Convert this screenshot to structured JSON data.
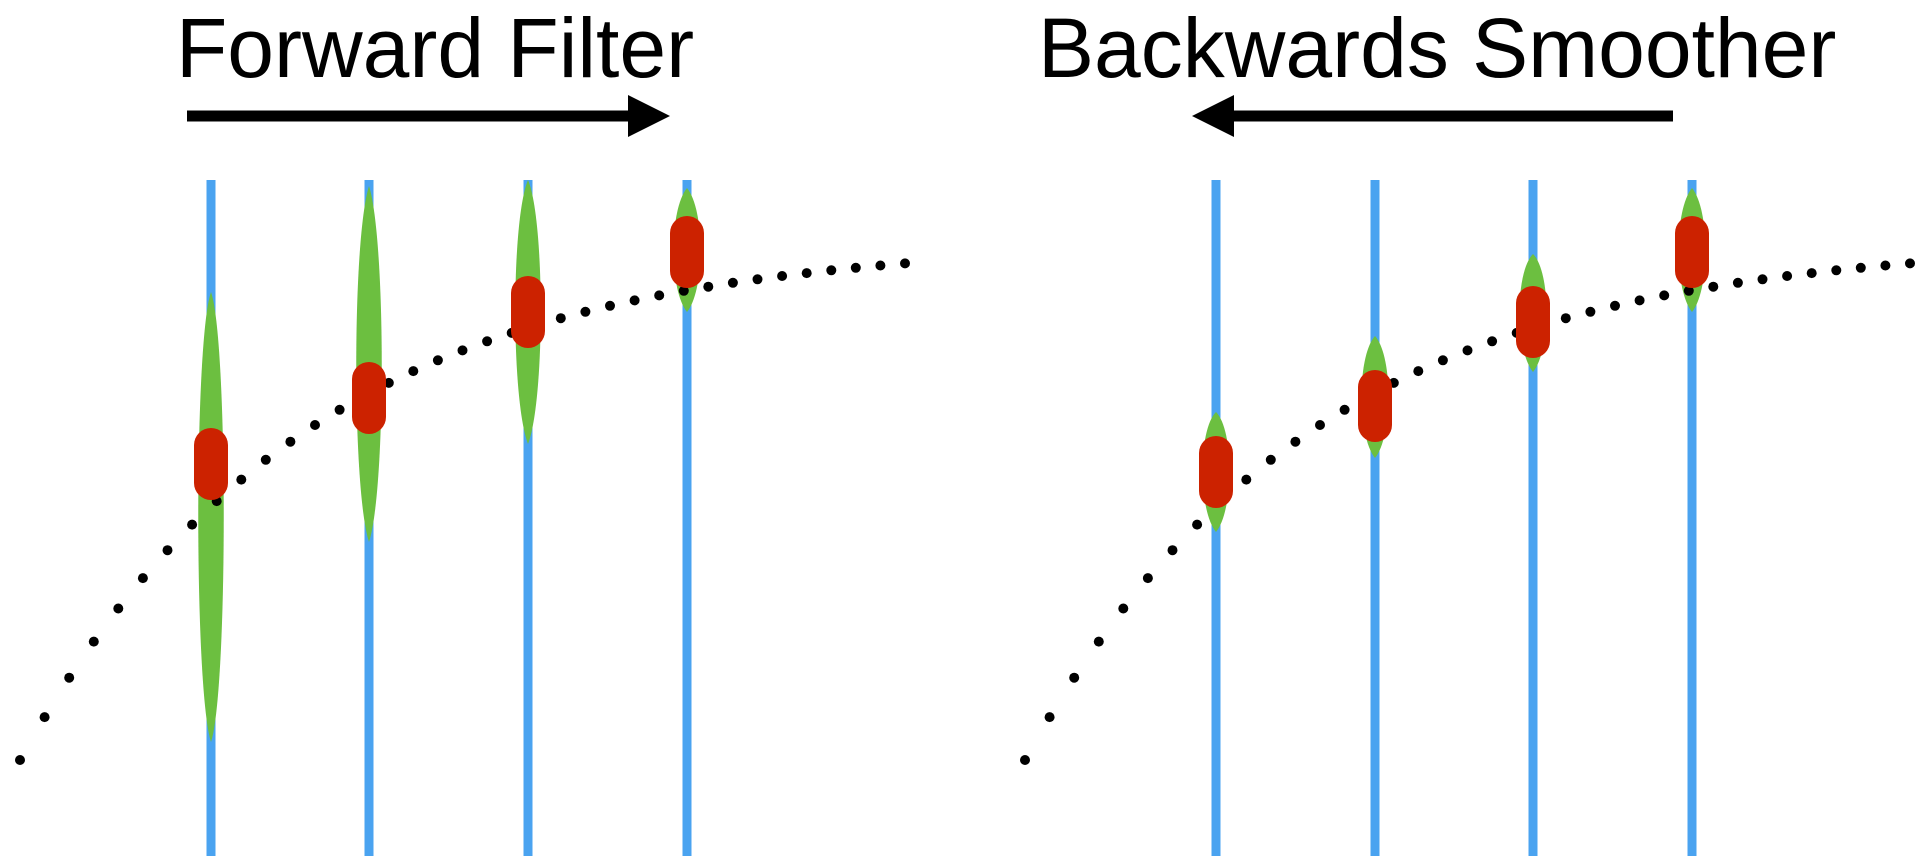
{
  "panels": {
    "left": {
      "title": "Forward Filter",
      "direction": "right"
    },
    "right": {
      "title": "Backwards Smoother",
      "direction": "left"
    }
  },
  "colors": {
    "time_line": "#4aa3f0",
    "uncertainty": "#6cbf40",
    "estimate": "#cc2200",
    "trajectory": "#000000",
    "arrow": "#000000"
  }
}
